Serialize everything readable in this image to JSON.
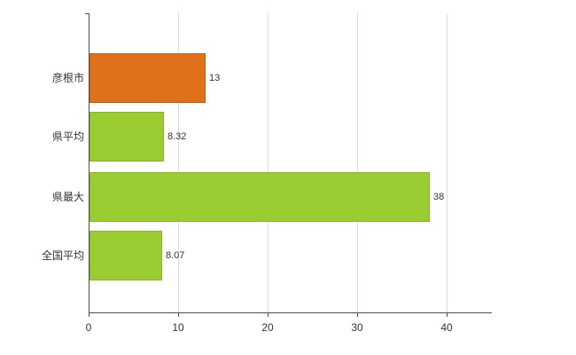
{
  "chart_data": {
    "type": "bar",
    "orientation": "horizontal",
    "title": "",
    "xlabel": "",
    "ylabel": "",
    "categories": [
      "彦根市",
      "県平均",
      "県最大",
      "全国平均"
    ],
    "values": [
      13,
      8.32,
      38,
      8.07
    ],
    "value_labels": [
      "13",
      "8.32",
      "38",
      "8.07"
    ],
    "bar_colors": [
      "#e0711c",
      "#9bcd32",
      "#9bcd32",
      "#9bcd32"
    ],
    "bar_border_colors": [
      "#c45f10",
      "#86b42a",
      "#86b42a",
      "#86b42a"
    ],
    "xlim": [
      0,
      45
    ],
    "x_ticks": [
      0,
      10,
      20,
      30,
      40
    ],
    "x_tick_labels": [
      "0",
      "10",
      "20",
      "30",
      "40"
    ],
    "grid": "vertical",
    "gridline_color": "#dcdcdc",
    "axis_color": "#4d4d4d",
    "background_color": "#ffffff",
    "legend_position": "none"
  },
  "layout_note": ""
}
